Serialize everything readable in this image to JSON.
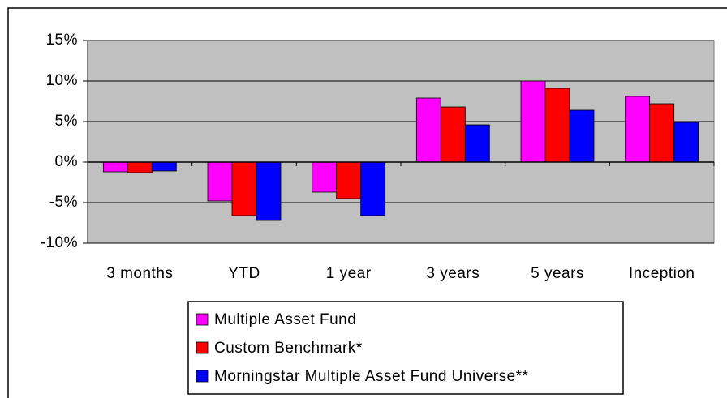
{
  "chart_data": {
    "type": "bar",
    "categories": [
      "3 months",
      "YTD",
      "1 year",
      "3 years",
      "5 years",
      "Inception"
    ],
    "series": [
      {
        "name": "Multiple Asset Fund",
        "color": "#ff00ff",
        "values": [
          -1.2,
          -4.8,
          -3.7,
          7.9,
          10,
          8.1
        ]
      },
      {
        "name": "Custom Benchmark*",
        "color": "#ff0000",
        "values": [
          -1.3,
          -6.6,
          -4.5,
          6.8,
          9.1,
          7.2
        ]
      },
      {
        "name": "Morningstar Multiple Asset Fund Universe**",
        "color": "#0000ff",
        "values": [
          -1.1,
          -7.2,
          -6.6,
          4.6,
          6.4,
          4.9
        ]
      }
    ],
    "ylim": [
      -10,
      15
    ],
    "yticks": [
      {
        "value": -10,
        "label": "-10%"
      },
      {
        "value": -5,
        "label": "-5%"
      },
      {
        "value": 0,
        "label": "0%"
      },
      {
        "value": 5,
        "label": "5%"
      },
      {
        "value": 10,
        "label": "10%"
      },
      {
        "value": 15,
        "label": "15%"
      }
    ],
    "grid": true,
    "legend": "bottom",
    "background": "#c0c0c0"
  }
}
